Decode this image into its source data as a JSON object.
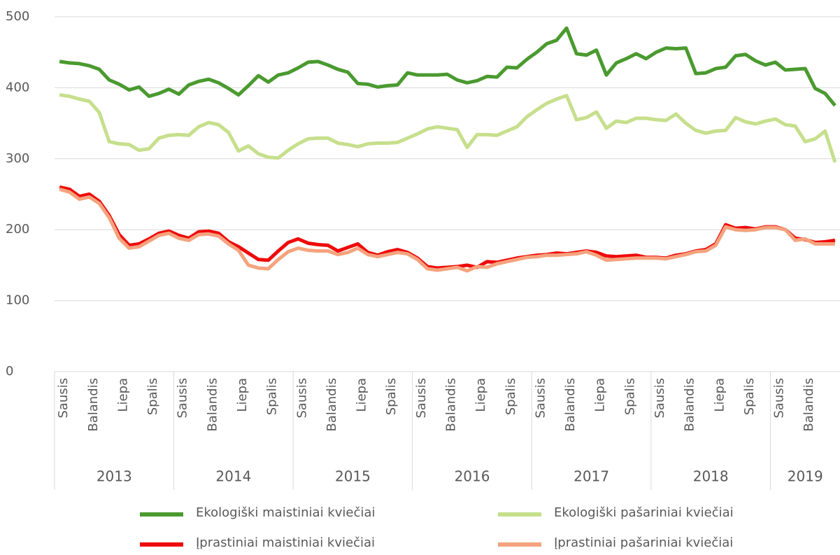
{
  "chart_data": {
    "type": "line",
    "categories": [
      "Sausis",
      null,
      null,
      "Balandis",
      null,
      null,
      "Liepa",
      null,
      null,
      "Spalis",
      null,
      null,
      "Sausis",
      null,
      null,
      "Balandis",
      null,
      null,
      "Liepa",
      null,
      null,
      "Spalis",
      null,
      null,
      "Sausis",
      null,
      null,
      "Balandis",
      null,
      null,
      "Liepa",
      null,
      null,
      "Spalis",
      null,
      null,
      "Sausis",
      null,
      null,
      "Balandis",
      null,
      null,
      "Liepa",
      null,
      null,
      "Spalis",
      null,
      null,
      "Sausis",
      null,
      null,
      "Balandis",
      null,
      null,
      "Liepa",
      null,
      null,
      "Spalis",
      null,
      null,
      "Sausis",
      null,
      null,
      "Balandis",
      null,
      null,
      "Liepa",
      null,
      null,
      "Spalis",
      null,
      null,
      "Sausis",
      null,
      null,
      "Balandis",
      null,
      null,
      null
    ],
    "groups": [
      {
        "label": "2013",
        "count": 12
      },
      {
        "label": "2014",
        "count": 12
      },
      {
        "label": "2015",
        "count": 12
      },
      {
        "label": "2016",
        "count": 12
      },
      {
        "label": "2017",
        "count": 12
      },
      {
        "label": "2018",
        "count": 12
      },
      {
        "label": "2019",
        "count": 7
      }
    ],
    "ylim": [
      0,
      500
    ],
    "yticks": [
      0,
      100,
      200,
      300,
      400,
      500
    ],
    "grid": true,
    "series": [
      {
        "name": "Ekologiški maistiniai kviečiai",
        "color": "#4a9a2f",
        "values": [
          437,
          435,
          434,
          431,
          426,
          411,
          405,
          397,
          401,
          388,
          392,
          398,
          391,
          404,
          409,
          412,
          407,
          399,
          390,
          403,
          417,
          408,
          418,
          421,
          428,
          436,
          437,
          432,
          426,
          422,
          406,
          405,
          401,
          403,
          404,
          421,
          418,
          418,
          418,
          419,
          411,
          407,
          410,
          416,
          415,
          429,
          428,
          440,
          450,
          462,
          467,
          484,
          448,
          446,
          453,
          418,
          435,
          441,
          448,
          441,
          450,
          456,
          455,
          456,
          420,
          421,
          427,
          429,
          445,
          447,
          438,
          432,
          436,
          425,
          426,
          427,
          399,
          392,
          375
        ]
      },
      {
        "name": "Ekologiški pašariniai kviečiai",
        "color": "#c6df8c",
        "values": [
          390,
          388,
          384,
          381,
          365,
          324,
          321,
          320,
          312,
          314,
          329,
          333,
          334,
          333,
          345,
          351,
          348,
          337,
          311,
          318,
          307,
          302,
          301,
          312,
          321,
          328,
          329,
          329,
          322,
          320,
          317,
          321,
          322,
          322,
          323,
          329,
          335,
          342,
          345,
          343,
          341,
          316,
          334,
          334,
          333,
          339,
          345,
          359,
          369,
          378,
          384,
          389,
          355,
          358,
          366,
          343,
          353,
          351,
          357,
          357,
          355,
          354,
          363,
          350,
          340,
          336,
          339,
          340,
          358,
          352,
          349,
          353,
          356,
          348,
          346,
          324,
          328,
          339,
          295
        ]
      },
      {
        "name": "Įprastiniai maistiniai kviečiai",
        "color": "#ee0a0a",
        "values": [
          260,
          257,
          247,
          250,
          240,
          220,
          193,
          178,
          180,
          187,
          195,
          198,
          192,
          188,
          197,
          198,
          195,
          183,
          176,
          167,
          158,
          157,
          170,
          182,
          187,
          181,
          179,
          178,
          170,
          175,
          180,
          168,
          164,
          169,
          172,
          168,
          160,
          148,
          146,
          147,
          148,
          150,
          147,
          155,
          154,
          157,
          160,
          162,
          164,
          165,
          167,
          166,
          168,
          170,
          168,
          163,
          162,
          163,
          164,
          161,
          161,
          160,
          164,
          166,
          170,
          172,
          180,
          207,
          202,
          203,
          201,
          204,
          204,
          200,
          188,
          186,
          182,
          183,
          185
        ]
      },
      {
        "name": "Įprastiniai pašariniai kviečiai",
        "color": "#f4a37e",
        "values": [
          257,
          253,
          243,
          246,
          237,
          217,
          188,
          174,
          176,
          184,
          192,
          195,
          188,
          185,
          193,
          194,
          191,
          180,
          171,
          150,
          146,
          145,
          158,
          169,
          174,
          171,
          170,
          170,
          165,
          168,
          174,
          165,
          162,
          165,
          168,
          166,
          158,
          145,
          143,
          145,
          147,
          142,
          148,
          147,
          152,
          155,
          158,
          161,
          162,
          164,
          164,
          165,
          166,
          169,
          164,
          157,
          158,
          159,
          160,
          160,
          160,
          159,
          162,
          165,
          169,
          170,
          178,
          204,
          200,
          199,
          200,
          203,
          203,
          200,
          185,
          187,
          180,
          180,
          180
        ]
      }
    ]
  }
}
